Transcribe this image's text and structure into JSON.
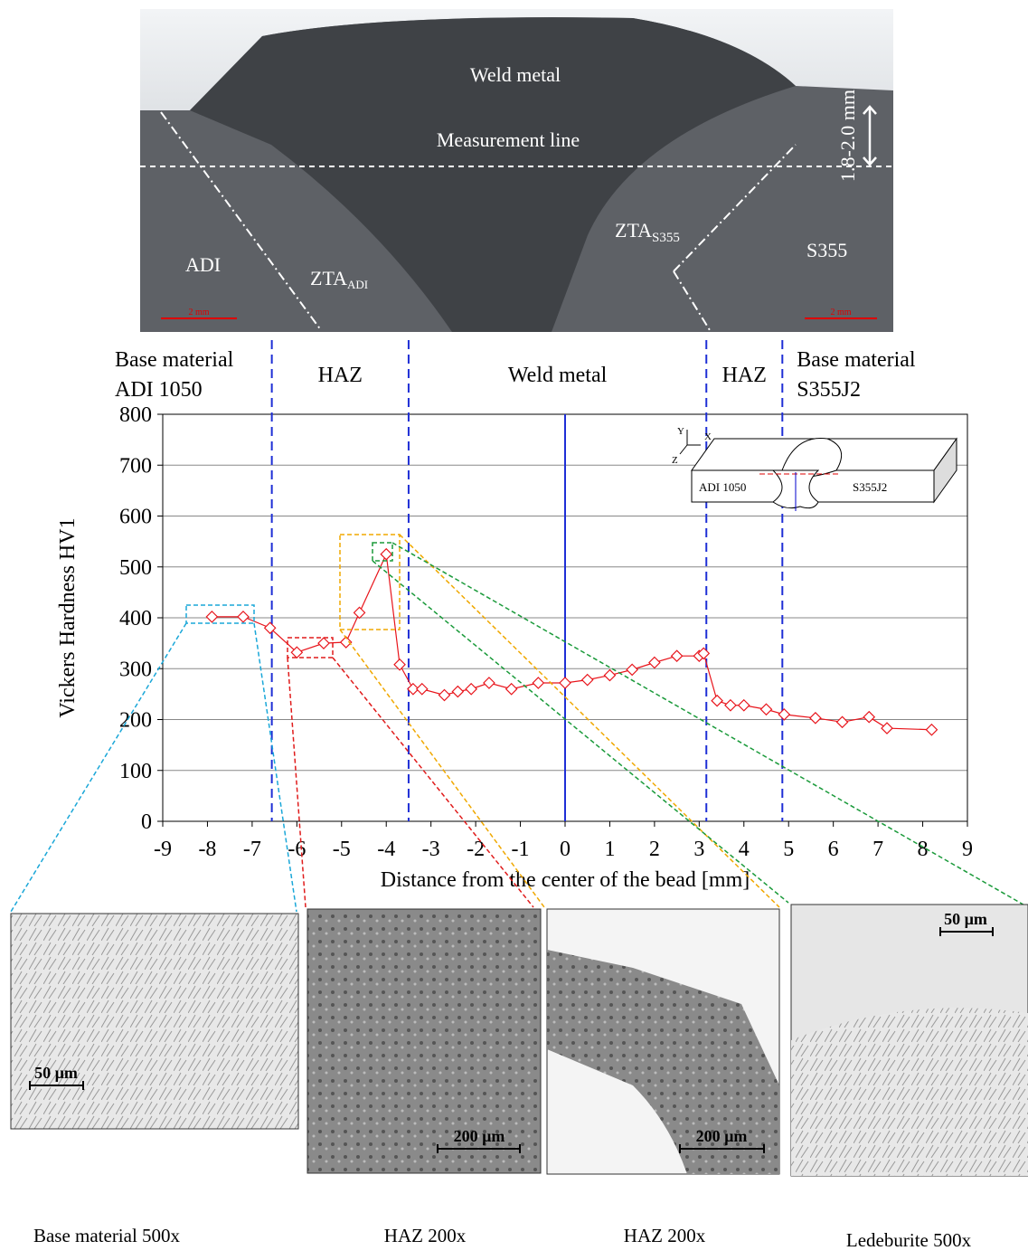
{
  "photo": {
    "weld_metal": "Weld metal",
    "measurement_line": "Measurement line",
    "depth": "1.8-2.0 mm",
    "adi": "ADI",
    "zta_adi": {
      "main": "ZTA",
      "sub": "ADI"
    },
    "zta_s355": {
      "main": "ZTA",
      "sub": "S355"
    },
    "s355": "S355",
    "scale_left": "2 mm",
    "scale_right": "2 mm"
  },
  "chart_data": {
    "type": "line",
    "x_label": "Distance from the center of the bead [mm]",
    "y_label": "Vickers Hardness HV1",
    "xlim": [
      -9,
      9
    ],
    "ylim": [
      0,
      800
    ],
    "xticks": [
      -9,
      -8,
      -7,
      -6,
      -5,
      -4,
      -3,
      -2,
      -1,
      0,
      1,
      2,
      3,
      4,
      5,
      6,
      7,
      8,
      9
    ],
    "yticks": [
      0,
      100,
      200,
      300,
      400,
      500,
      600,
      700,
      800
    ],
    "grid": true,
    "zones": [
      {
        "label": [
          "Base material",
          "ADI 1050"
        ]
      },
      {
        "label": [
          "HAZ"
        ]
      },
      {
        "label": [
          "Weld metal"
        ]
      },
      {
        "label": [
          "HAZ"
        ]
      },
      {
        "label": [
          "Base material",
          "S355J2"
        ]
      }
    ],
    "zone_boundaries": [
      -6.56,
      -3.5,
      3.16,
      4.86
    ],
    "center_line": 0,
    "series": [
      {
        "color": "#e8141b",
        "x": [
          -7.9,
          -7.2,
          -6.6,
          -6.0,
          -5.4,
          -4.9,
          -4.6,
          -4.0,
          -3.7,
          -3.4,
          -3.2,
          -2.7,
          -2.4,
          -2.1,
          -1.7,
          -1.2,
          -0.6,
          0,
          0.5,
          1.0,
          1.5,
          2.0,
          2.5,
          3.0,
          3.1,
          3.4,
          3.7,
          4.0,
          4.5,
          4.9,
          5.6,
          6.2,
          6.8,
          7.2,
          8.2
        ],
        "values": [
          402,
          402,
          380,
          332,
          350,
          352,
          410,
          525,
          308,
          260,
          260,
          248,
          255,
          260,
          272,
          260,
          272,
          272,
          278,
          287,
          298,
          312,
          325,
          325,
          330,
          237,
          228,
          228,
          220,
          210,
          203,
          195,
          205,
          183,
          180
        ]
      }
    ],
    "inset": {
      "y": "Y",
      "x": "X",
      "z": "Z",
      "left": "ADI 1050",
      "right": "S355J2"
    }
  },
  "micrographs": [
    {
      "scale": "50 µm",
      "caption": "Base material 500x"
    },
    {
      "scale": "200 µm",
      "caption": "HAZ 200x"
    },
    {
      "scale": "200 µm",
      "caption": "HAZ 200x"
    },
    {
      "scale": "50 µm",
      "caption": "Ledeburite 500x"
    }
  ]
}
